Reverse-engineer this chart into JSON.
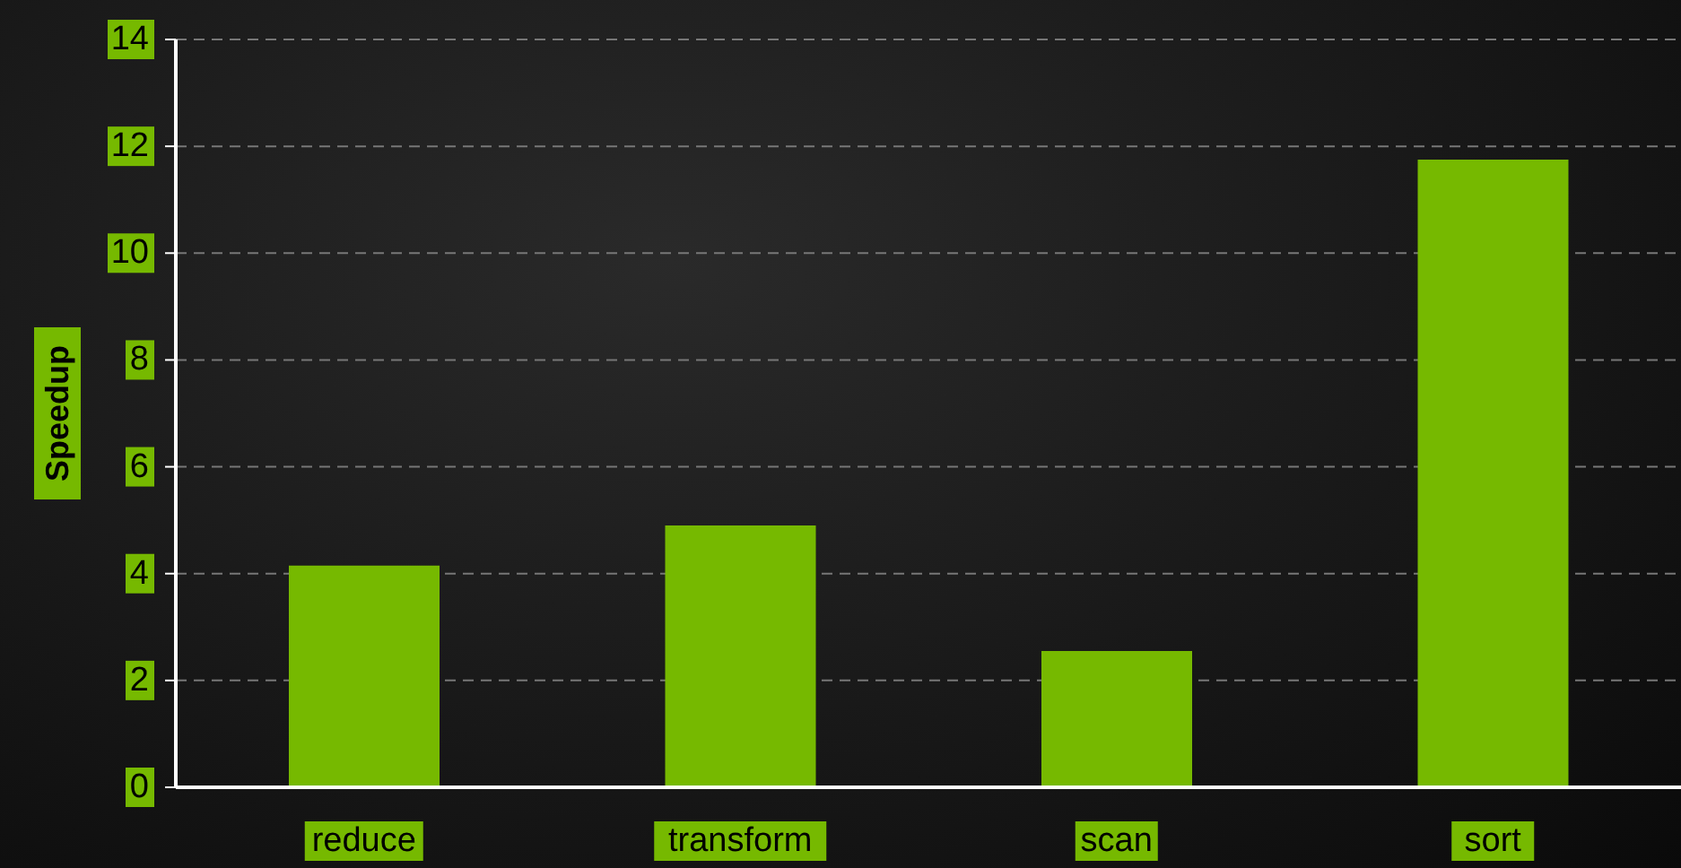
{
  "chart_data": {
    "type": "bar",
    "ylabel": "Speedup",
    "categories": [
      "reduce",
      "transform",
      "scan",
      "sort"
    ],
    "values": [
      4.15,
      4.9,
      2.55,
      11.75
    ],
    "color": "#76b900",
    "ylim": [
      0,
      14
    ],
    "yticks": [
      0,
      2,
      4,
      6,
      8,
      10,
      12,
      14
    ],
    "grid": "y"
  }
}
